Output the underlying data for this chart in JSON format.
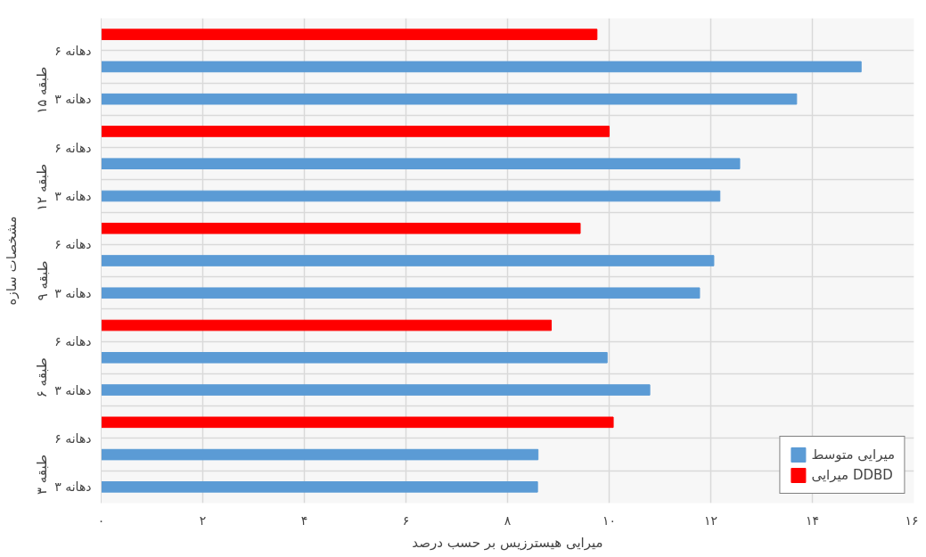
{
  "chart_data": {
    "type": "bar",
    "orientation": "horizontal",
    "xlabel": "میرایی هیسترزیس بر حسب درصد",
    "ylabel": "مشخصات سازه",
    "categories": [
      "۶ دهانه",
      "۳ دهانه",
      "۶ دهانه",
      "۳ دهانه",
      "۶ دهانه",
      "۳ دهانه",
      "۶ دهانه",
      "۳ دهانه",
      "۶ دهانه",
      "۳ دهانه"
    ],
    "annotations": [
      "طبقه ۱۵",
      "طبقه ۱۲",
      "طبقه ۹",
      "طبقه ۶",
      "طبقه ۳"
    ],
    "series": [
      {
        "name": "میرایی متوسط",
        "color": "#5b9bd5",
        "values": [
          14.96,
          13.69,
          12.57,
          12.18,
          12.06,
          11.78,
          9.96,
          10.8,
          8.6,
          8.59
        ]
      },
      {
        "name": "میرایی DDBD",
        "color": "#ff0000",
        "values": [
          9.76,
          null,
          10.0,
          null,
          9.43,
          null,
          8.86,
          null,
          10.08,
          null
        ]
      }
    ],
    "xlim": [
      0,
      16
    ],
    "xticks": [
      {
        "value": 0,
        "label": "۰"
      },
      {
        "value": 2,
        "label": "۲"
      },
      {
        "value": 4,
        "label": "۴"
      },
      {
        "value": 6,
        "label": "۶"
      },
      {
        "value": 8,
        "label": "۸"
      },
      {
        "value": 10,
        "label": "۱۰"
      },
      {
        "value": 12,
        "label": "۱۲"
      },
      {
        "value": 14,
        "label": "۱۴"
      },
      {
        "value": 16,
        "label": "۱۶"
      }
    ],
    "grid": true,
    "legend": "bottom right"
  }
}
